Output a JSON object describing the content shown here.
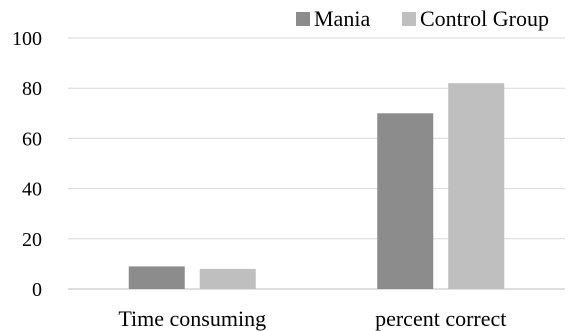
{
  "chart_data": {
    "type": "bar",
    "categories": [
      "Time consuming",
      "percent correct"
    ],
    "series": [
      {
        "name": "Mania",
        "values": [
          9,
          70
        ],
        "color": "#8c8c8c"
      },
      {
        "name": "Control Group",
        "values": [
          8,
          82
        ],
        "color": "#bfbfbf"
      }
    ],
    "ylim": [
      0,
      100
    ],
    "yticks": [
      0,
      20,
      40,
      60,
      80,
      100
    ],
    "grid": true,
    "legend_position": "top-right",
    "title": "",
    "xlabel": "",
    "ylabel": ""
  }
}
